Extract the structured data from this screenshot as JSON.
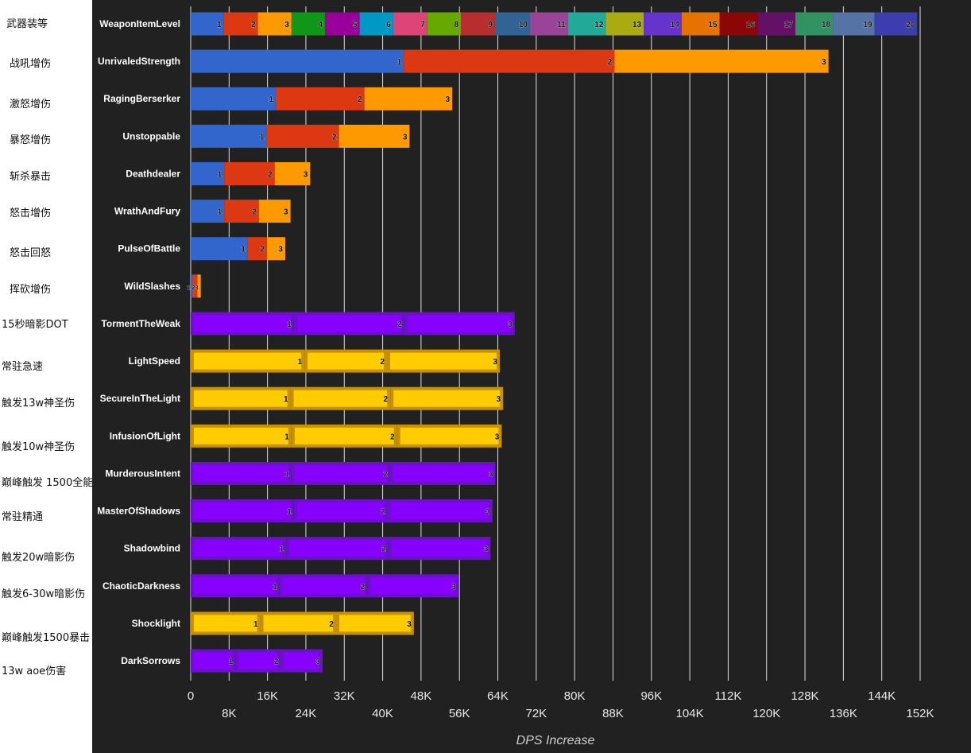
{
  "annotations": [
    "武器装等",
    "战吼增伤",
    "激怒增伤",
    "暴怒增伤",
    "斩杀暴击",
    "怒击增伤",
    "怒击回怒",
    "挥砍增伤",
    "15秒暗影DOT",
    "常驻急速",
    "触发13w神圣伤",
    "触发10w神圣伤",
    "巅峰触发 1500全能",
    "常驻精通",
    "触发20w暗影伤",
    "触发6-30w暗影伤",
    "巅峰触发1500暴击",
    "13w aoe伤害"
  ],
  "colors": {
    "background": "#212121",
    "grid": "#e0e0e0",
    "tick_text": "#e8e8e8",
    "axis_title": "#cfcfcf",
    "stack_palette": [
      "#3366cc",
      "#dc3912",
      "#ff9900",
      "#109618",
      "#990099",
      "#0099c6",
      "#dd4477",
      "#66aa00",
      "#b82e2e",
      "#316395",
      "#994499",
      "#22aa99",
      "#aaaa11",
      "#6633cc",
      "#e67300",
      "#8b0707",
      "#651067",
      "#329262",
      "#5574a6",
      "#3b3eac"
    ],
    "purple_fill": "#8800ff",
    "purple_border": "#6a11c9",
    "gold_fill": "#ffcc00",
    "gold_border": "#c79100"
  },
  "chart_data": {
    "type": "bar",
    "orientation": "horizontal",
    "stacked": true,
    "xlabel": "DPS Increase",
    "xlim": [
      0,
      152000
    ],
    "xticks": [
      0,
      8000,
      16000,
      24000,
      32000,
      40000,
      48000,
      56000,
      64000,
      72000,
      80000,
      88000,
      96000,
      104000,
      112000,
      120000,
      128000,
      136000,
      144000,
      152000
    ],
    "xtick_labels": [
      "0",
      "8K",
      "16K",
      "24K",
      "32K",
      "40K",
      "48K",
      "56K",
      "64K",
      "72K",
      "80K",
      "88K",
      "96K",
      "104K",
      "112K",
      "120K",
      "128K",
      "136K",
      "144K",
      "152K"
    ],
    "grid": true,
    "categories": [
      {
        "name": "WeaponItemLevel",
        "style": "palette",
        "segments": [
          6900,
          7100,
          7000,
          7000,
          7200,
          7000,
          7100,
          7000,
          7100,
          7300,
          7900,
          7900,
          7900,
          7900,
          7900,
          7900,
          7900,
          7800,
          8700,
          8900
        ]
      },
      {
        "name": "UnrivaledStrength",
        "style": "palette",
        "segments": [
          44400,
          43900,
          44600
        ]
      },
      {
        "name": "RagingBerserker",
        "style": "palette",
        "segments": [
          17700,
          18500,
          18300
        ]
      },
      {
        "name": "Unstoppable",
        "style": "palette",
        "segments": [
          15800,
          15100,
          14700
        ]
      },
      {
        "name": "Deathdealer",
        "style": "palette",
        "segments": [
          7000,
          10500,
          7400
        ]
      },
      {
        "name": "WrathAndFury",
        "style": "palette",
        "segments": [
          7000,
          7200,
          6600
        ]
      },
      {
        "name": "PulseOfBattle",
        "style": "palette",
        "segments": [
          11900,
          4000,
          3800
        ]
      },
      {
        "name": "WildSlashes",
        "style": "palette",
        "segments": [
          400,
          1000,
          700
        ]
      },
      {
        "name": "TormentTheWeak",
        "style": "purple",
        "segments": [
          21500,
          23000,
          23000
        ]
      },
      {
        "name": "LightSpeed",
        "style": "gold",
        "segments": [
          23700,
          17200,
          23500
        ]
      },
      {
        "name": "SecureInTheLight",
        "style": "gold",
        "segments": [
          20800,
          20800,
          23500
        ]
      },
      {
        "name": "InfusionOfLight",
        "style": "gold",
        "segments": [
          21000,
          22000,
          21800
        ]
      },
      {
        "name": "MurderousIntent",
        "style": "purple",
        "segments": [
          21000,
          20500,
          22000
        ]
      },
      {
        "name": "MasterOfShadows",
        "style": "purple",
        "segments": [
          21500,
          19500,
          21900
        ]
      },
      {
        "name": "Shadowbind",
        "style": "purple",
        "segments": [
          19900,
          21300,
          21300
        ]
      },
      {
        "name": "ChaoticDarkness",
        "style": "purple",
        "segments": [
          18500,
          18300,
          19000
        ]
      },
      {
        "name": "Shocklight",
        "style": "gold",
        "segments": [
          14500,
          15800,
          16200
        ]
      },
      {
        "name": "DarkSorrows",
        "style": "purple",
        "segments": [
          9300,
          9500,
          8700
        ]
      }
    ]
  }
}
